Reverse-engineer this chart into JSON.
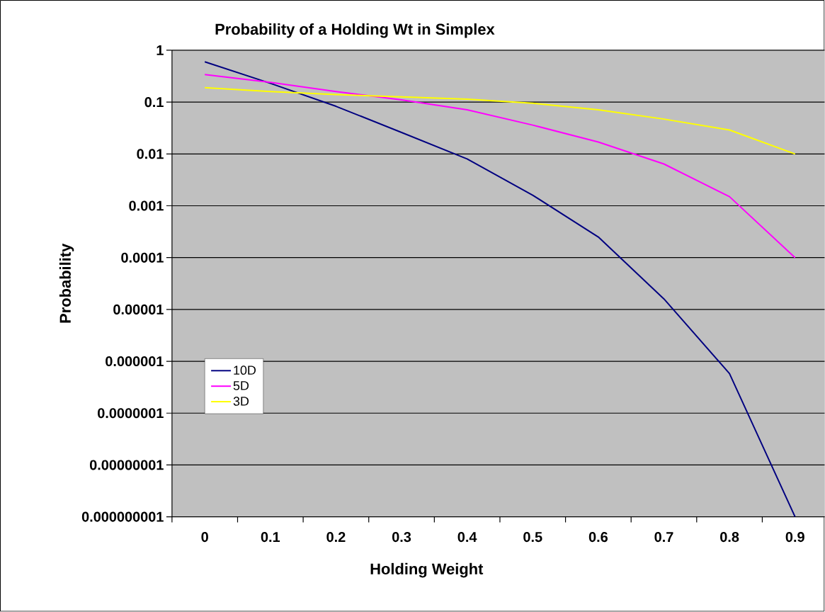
{
  "chart_data": {
    "type": "line",
    "title": "Probability of a Holding Wt in Simplex",
    "xlabel": "Holding Weight",
    "ylabel": "Probability",
    "x": [
      0,
      0.1,
      0.2,
      0.3,
      0.4,
      0.5,
      0.6,
      0.7,
      0.8,
      0.9
    ],
    "series": [
      {
        "name": "10D",
        "color": "#000080",
        "values": [
          0.6,
          0.23,
          0.083,
          0.026,
          0.008,
          0.0016,
          0.00025,
          1.6e-05,
          5.8e-07,
          1e-09
        ]
      },
      {
        "name": "5D",
        "color": "#ff00ff",
        "values": [
          0.34,
          0.24,
          0.16,
          0.11,
          0.071,
          0.036,
          0.017,
          0.0064,
          0.0015,
          0.0001
        ]
      },
      {
        "name": "3D",
        "color": "#ffff00",
        "values": [
          0.19,
          0.16,
          0.14,
          0.126,
          0.114,
          0.095,
          0.071,
          0.047,
          0.029,
          0.01
        ]
      }
    ],
    "log": "y",
    "grid": "y",
    "legend": "left",
    "marker": "none",
    "line_style": "solid",
    "xlim": [
      -0.05,
      0.945
    ],
    "ylim": [
      1e-09,
      1
    ],
    "xticks": [
      {
        "value": -0.05,
        "label": null
      },
      {
        "value": 0,
        "label": "0"
      },
      {
        "value": 0.05,
        "label": null
      },
      {
        "value": 0.1,
        "label": "0.1"
      },
      {
        "value": 0.15,
        "label": null
      },
      {
        "value": 0.2,
        "label": "0.2"
      },
      {
        "value": 0.25,
        "label": null
      },
      {
        "value": 0.3,
        "label": "0.3"
      },
      {
        "value": 0.35,
        "label": null
      },
      {
        "value": 0.4,
        "label": "0.4"
      },
      {
        "value": 0.45,
        "label": null
      },
      {
        "value": 0.5,
        "label": "0.5"
      },
      {
        "value": 0.55,
        "label": null
      },
      {
        "value": 0.6,
        "label": "0.6"
      },
      {
        "value": 0.65,
        "label": null
      },
      {
        "value": 0.7,
        "label": "0.7"
      },
      {
        "value": 0.75,
        "label": null
      },
      {
        "value": 0.8,
        "label": "0.8"
      },
      {
        "value": 0.85,
        "label": null
      },
      {
        "value": 0.9,
        "label": "0.9"
      }
    ],
    "yticks": [
      {
        "value": 1,
        "label": "1"
      },
      {
        "value": 0.1,
        "label": "0.1"
      },
      {
        "value": 0.01,
        "label": "0.01"
      },
      {
        "value": 0.001,
        "label": "0.001"
      },
      {
        "value": 0.0001,
        "label": "0.0001"
      },
      {
        "value": 1e-05,
        "label": "0.00001"
      },
      {
        "value": 1e-06,
        "label": "0.000001"
      },
      {
        "value": 1e-07,
        "label": "0.0000001"
      },
      {
        "value": 1e-08,
        "label": "0.00000001"
      },
      {
        "value": 1e-09,
        "label": "0.000000001"
      }
    ]
  }
}
